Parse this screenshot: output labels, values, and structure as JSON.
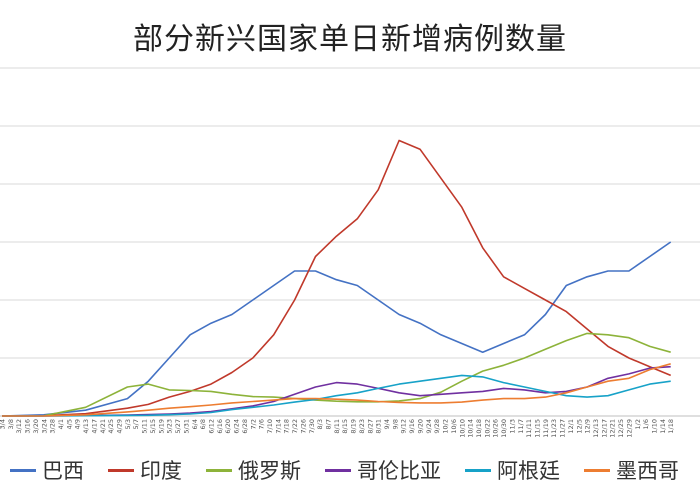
{
  "chart_data": {
    "type": "line",
    "title": "部分新兴国家单日新增病例数量",
    "xlabel": "",
    "ylabel": "",
    "grid": true,
    "legend_position": "bottom",
    "x_ticks": [
      "3/4",
      "3/8",
      "3/12",
      "3/16",
      "3/20",
      "3/24",
      "3/28",
      "4/1",
      "4/5",
      "4/9",
      "4/13",
      "4/17",
      "4/21",
      "4/25",
      "4/29",
      "5/3",
      "5/7",
      "5/11",
      "5/15",
      "5/19",
      "5/23",
      "5/27",
      "5/31",
      "6/4",
      "6/8",
      "6/12",
      "6/16",
      "6/20",
      "6/24",
      "6/28",
      "7/2",
      "7/6",
      "7/10",
      "7/14",
      "7/18",
      "7/22",
      "7/26",
      "7/30",
      "8/3",
      "8/7",
      "8/11",
      "8/15",
      "8/19",
      "8/23",
      "8/27",
      "8/31",
      "9/4",
      "9/8",
      "9/12",
      "9/16",
      "9/20",
      "9/24",
      "9/28",
      "10/2",
      "10/6",
      "10/10",
      "10/14",
      "10/18",
      "10/22",
      "10/26",
      "10/30",
      "11/3",
      "11/7",
      "11/11",
      "11/15",
      "11/19",
      "11/23",
      "11/27",
      "12/1",
      "12/5",
      "12/9",
      "12/13",
      "12/17",
      "12/21",
      "12/25",
      "12/29",
      "1/2",
      "1/6",
      "1/10",
      "1/14",
      "1/18"
    ],
    "series": [
      {
        "name": "巴西",
        "color": "#4472C4",
        "x": [
          "3/4",
          "3/24",
          "4/13",
          "5/3",
          "5/13",
          "5/23",
          "6/2",
          "6/12",
          "6/22",
          "7/2",
          "7/12",
          "7/22",
          "8/1",
          "8/11",
          "8/21",
          "8/31",
          "9/10",
          "9/20",
          "9/30",
          "10/10",
          "10/20",
          "10/30",
          "11/9",
          "11/19",
          "11/29",
          "12/9",
          "12/19",
          "12/29",
          "1/8",
          "1/18"
        ],
        "values": [
          0,
          400,
          2000,
          6000,
          12000,
          20000,
          28000,
          32000,
          35000,
          40000,
          45000,
          50000,
          50000,
          47000,
          45000,
          40000,
          35000,
          32000,
          28000,
          25000,
          22000,
          25000,
          28000,
          35000,
          45000,
          48000,
          50000,
          50000,
          55000,
          60000
        ]
      },
      {
        "name": "印度",
        "color": "#C0392B",
        "x": [
          "3/4",
          "3/24",
          "4/13",
          "5/3",
          "5/13",
          "5/23",
          "6/2",
          "6/12",
          "6/22",
          "7/2",
          "7/12",
          "7/22",
          "8/1",
          "8/11",
          "8/21",
          "8/31",
          "9/10",
          "9/20",
          "9/30",
          "10/10",
          "10/20",
          "10/30",
          "11/9",
          "11/19",
          "11/29",
          "12/9",
          "12/19",
          "12/29",
          "1/8",
          "1/18"
        ],
        "values": [
          0,
          100,
          800,
          2700,
          4000,
          6500,
          8500,
          11000,
          15000,
          20000,
          28000,
          40000,
          55000,
          62000,
          68000,
          78000,
          95000,
          92000,
          82000,
          72000,
          58000,
          48000,
          44000,
          40000,
          36000,
          30000,
          24000,
          20000,
          17000,
          14000
        ]
      },
      {
        "name": "俄罗斯",
        "color": "#8DB33A",
        "x": [
          "3/4",
          "3/24",
          "4/13",
          "5/3",
          "5/13",
          "5/23",
          "6/2",
          "6/12",
          "6/22",
          "7/2",
          "7/12",
          "7/22",
          "8/1",
          "8/11",
          "8/21",
          "8/31",
          "9/10",
          "9/20",
          "9/30",
          "10/10",
          "10/20",
          "10/30",
          "11/9",
          "11/19",
          "11/29",
          "12/9",
          "12/19",
          "12/29",
          "1/8",
          "1/18"
        ],
        "values": [
          0,
          70,
          3000,
          10000,
          11000,
          9000,
          8800,
          8500,
          7500,
          6700,
          6500,
          6000,
          5500,
          5100,
          4900,
          4900,
          5200,
          6000,
          8200,
          12000,
          15500,
          17500,
          20000,
          23000,
          26000,
          28500,
          28000,
          27000,
          24000,
          22000
        ]
      },
      {
        "name": "哥伦比亚",
        "color": "#7030A0",
        "x": [
          "3/4",
          "3/24",
          "4/13",
          "5/3",
          "5/13",
          "5/23",
          "6/2",
          "6/12",
          "6/22",
          "7/2",
          "7/12",
          "7/22",
          "8/1",
          "8/11",
          "8/21",
          "8/31",
          "9/10",
          "9/20",
          "9/30",
          "10/10",
          "10/20",
          "10/30",
          "11/9",
          "11/19",
          "11/29",
          "12/9",
          "12/19",
          "12/29",
          "1/8",
          "1/18"
        ],
        "values": [
          0,
          50,
          150,
          350,
          500,
          700,
          1000,
          1500,
          2500,
          3500,
          5000,
          7500,
          10000,
          11500,
          11000,
          9500,
          8000,
          7000,
          7500,
          8000,
          8500,
          9500,
          9000,
          8000,
          8500,
          10000,
          13000,
          14500,
          16500,
          17000
        ]
      },
      {
        "name": "阿根廷",
        "color": "#17A2C8",
        "x": [
          "3/4",
          "3/24",
          "4/13",
          "5/3",
          "5/13",
          "5/23",
          "6/2",
          "6/12",
          "6/22",
          "7/2",
          "7/12",
          "7/22",
          "8/1",
          "8/11",
          "8/21",
          "8/31",
          "9/10",
          "9/20",
          "9/30",
          "10/10",
          "10/20",
          "10/30",
          "11/9",
          "11/19",
          "11/29",
          "12/9",
          "12/19",
          "12/29",
          "1/8",
          "1/18"
        ],
        "values": [
          0,
          50,
          120,
          200,
          250,
          450,
          700,
          1200,
          2200,
          3000,
          3800,
          4800,
          5700,
          7000,
          8000,
          9500,
          11000,
          12000,
          13000,
          14000,
          13500,
          11500,
          10000,
          8500,
          7000,
          6500,
          7000,
          9000,
          11000,
          12000
        ]
      },
      {
        "name": "墨西哥",
        "color": "#ED7D31",
        "x": [
          "3/4",
          "3/24",
          "4/13",
          "5/3",
          "5/13",
          "5/23",
          "6/2",
          "6/12",
          "6/22",
          "7/2",
          "7/12",
          "7/22",
          "8/1",
          "8/11",
          "8/21",
          "8/31",
          "9/10",
          "9/20",
          "9/30",
          "10/10",
          "10/20",
          "10/30",
          "11/9",
          "11/19",
          "11/29",
          "12/9",
          "12/19",
          "12/29",
          "1/8",
          "1/18"
        ],
        "values": [
          0,
          40,
          400,
          1400,
          2000,
          2700,
          3200,
          3800,
          4500,
          5000,
          5500,
          6000,
          6000,
          5800,
          5500,
          5000,
          4700,
          4500,
          4500,
          4800,
          5500,
          6000,
          6000,
          6500,
          8000,
          10000,
          12000,
          13000,
          16000,
          18000
        ]
      }
    ]
  }
}
